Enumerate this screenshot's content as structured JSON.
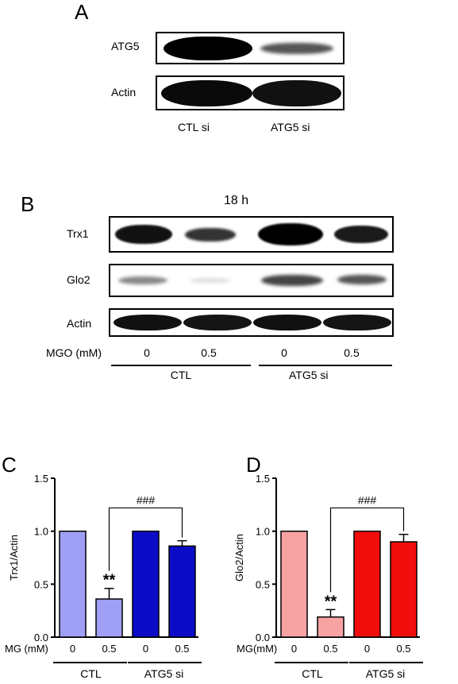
{
  "panel_a": {
    "letter": "A",
    "rows": [
      "ATG5",
      "Actin"
    ],
    "lanes": [
      "CTL si",
      "ATG5 si"
    ]
  },
  "panel_b": {
    "letter": "B",
    "time": "18 h",
    "rows": [
      "Trx1",
      "Glo2",
      "Actin"
    ],
    "mgo_label": "MGO (mM)",
    "doses": [
      "0",
      "0.5",
      "0",
      "0.5"
    ],
    "groups": [
      "CTL",
      "ATG5 si"
    ]
  },
  "chart_data": [
    {
      "type": "bar",
      "panel": "C",
      "ylabel": "Trx1/Actin",
      "ylim": [
        0,
        1.5
      ],
      "yticks": [
        "0.0",
        "0.5",
        "1.0",
        "1.5"
      ],
      "xlabel_prefix": "MG (mM)",
      "categories": [
        "0",
        "0.5",
        "0",
        "0.5"
      ],
      "values": [
        1.0,
        0.36,
        1.0,
        0.86
      ],
      "errors": [
        0,
        0.1,
        0,
        0.05
      ],
      "colors": [
        "#9f9ff5",
        "#9f9ff5",
        "#0c0cc8",
        "#0c0cc8"
      ],
      "groups": [
        "CTL",
        "ATG5 si"
      ],
      "sig_star": "**",
      "sig_hash": "###"
    },
    {
      "type": "bar",
      "panel": "D",
      "ylabel": "Glo2/Actin",
      "ylim": [
        0,
        1.5
      ],
      "yticks": [
        "0.0",
        "0.5",
        "1.0",
        "1.5"
      ],
      "xlabel_prefix": "MG(mM)",
      "categories": [
        "0",
        "0.5",
        "0",
        "0.5"
      ],
      "values": [
        1.0,
        0.19,
        1.0,
        0.9
      ],
      "errors": [
        0,
        0.07,
        0,
        0.07
      ],
      "colors": [
        "#f7a3a3",
        "#f7a3a3",
        "#f20d0d",
        "#f20d0d"
      ],
      "groups": [
        "CTL",
        "ATG5 si"
      ],
      "sig_star": "**",
      "sig_hash": "###"
    }
  ]
}
